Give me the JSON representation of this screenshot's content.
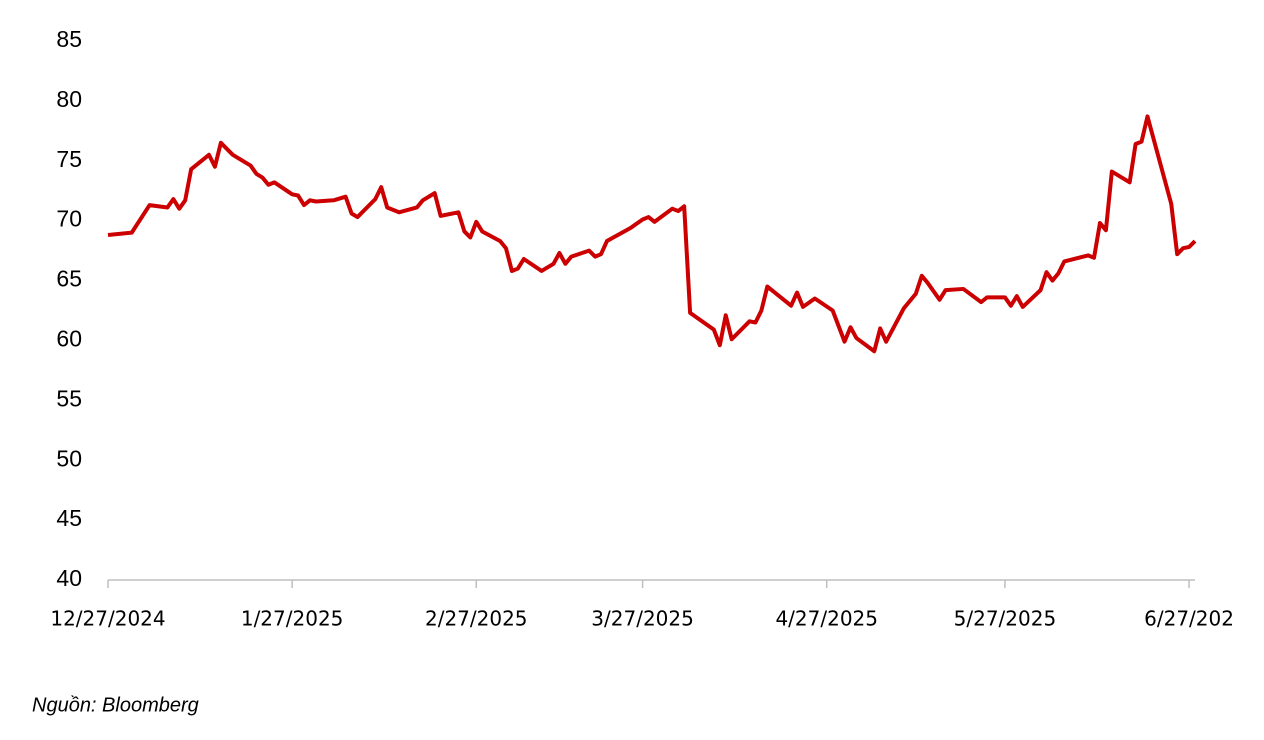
{
  "chart_data": {
    "type": "line",
    "color": "#cc0000",
    "x": [
      "2024-12-27",
      "2024-12-31",
      "2025-01-03",
      "2025-01-06",
      "2025-01-07",
      "2025-01-08",
      "2025-01-09",
      "2025-01-10",
      "2025-01-13",
      "2025-01-14",
      "2025-01-15",
      "2025-01-17",
      "2025-01-20",
      "2025-01-21",
      "2025-01-22",
      "2025-01-23",
      "2025-01-24",
      "2025-01-27",
      "2025-01-28",
      "2025-01-29",
      "2025-01-30",
      "2025-01-31",
      "2025-02-03",
      "2025-02-05",
      "2025-02-06",
      "2025-02-07",
      "2025-02-10",
      "2025-02-11",
      "2025-02-12",
      "2025-02-14",
      "2025-02-17",
      "2025-02-18",
      "2025-02-20",
      "2025-02-21",
      "2025-02-24",
      "2025-02-25",
      "2025-02-26",
      "2025-02-27",
      "2025-02-28",
      "2025-03-03",
      "2025-03-04",
      "2025-03-05",
      "2025-03-06",
      "2025-03-07",
      "2025-03-10",
      "2025-03-12",
      "2025-03-13",
      "2025-03-14",
      "2025-03-15",
      "2025-03-18",
      "2025-03-19",
      "2025-03-20",
      "2025-03-21",
      "2025-03-25",
      "2025-03-27",
      "2025-03-28",
      "2025-03-29",
      "2025-04-01",
      "2025-04-02",
      "2025-04-03",
      "2025-04-04",
      "2025-04-08",
      "2025-04-09",
      "2025-04-10",
      "2025-04-11",
      "2025-04-14",
      "2025-04-15",
      "2025-04-16",
      "2025-04-17",
      "2025-04-21",
      "2025-04-22",
      "2025-04-23",
      "2025-04-25",
      "2025-04-28",
      "2025-04-30",
      "2025-05-01",
      "2025-05-02",
      "2025-05-05",
      "2025-05-06",
      "2025-05-07",
      "2025-05-10",
      "2025-05-12",
      "2025-05-13",
      "2025-05-14",
      "2025-05-16",
      "2025-05-17",
      "2025-05-20",
      "2025-05-23",
      "2025-05-24",
      "2025-05-26",
      "2025-05-27",
      "2025-05-28",
      "2025-05-29",
      "2025-05-30",
      "2025-06-02",
      "2025-06-03",
      "2025-06-04",
      "2025-06-05",
      "2025-06-06",
      "2025-06-10",
      "2025-06-11",
      "2025-06-12",
      "2025-06-13",
      "2025-06-14",
      "2025-06-17",
      "2025-06-18",
      "2025-06-19",
      "2025-06-20",
      "2025-06-24",
      "2025-06-25",
      "2025-06-26",
      "2025-06-27",
      "2025-06-28"
    ],
    "values": [
      68.8,
      69.0,
      71.3,
      71.1,
      71.8,
      71.0,
      71.7,
      74.3,
      75.5,
      74.5,
      76.5,
      75.5,
      74.6,
      73.9,
      73.6,
      73.0,
      73.2,
      72.2,
      72.1,
      71.3,
      71.7,
      71.6,
      71.7,
      72.0,
      70.6,
      70.3,
      71.8,
      72.8,
      71.1,
      70.7,
      71.1,
      71.7,
      72.3,
      70.4,
      70.7,
      69.1,
      68.6,
      69.9,
      69.1,
      68.3,
      67.7,
      65.8,
      66.0,
      66.8,
      65.8,
      66.4,
      67.3,
      66.4,
      67.0,
      67.5,
      67.0,
      67.2,
      68.3,
      69.4,
      70.1,
      70.3,
      69.9,
      71.0,
      70.8,
      71.2,
      62.3,
      60.9,
      59.6,
      62.1,
      60.1,
      61.6,
      61.5,
      62.5,
      64.5,
      62.9,
      64.0,
      62.8,
      63.5,
      62.5,
      59.9,
      61.1,
      60.2,
      59.1,
      61.0,
      59.9,
      62.7,
      63.9,
      65.4,
      64.8,
      63.4,
      64.2,
      64.3,
      63.2,
      63.6,
      63.6,
      63.6,
      62.9,
      63.7,
      62.8,
      64.2,
      65.7,
      65.0,
      65.6,
      66.6,
      67.1,
      66.9,
      69.8,
      69.2,
      74.1,
      73.2,
      76.4,
      76.6,
      78.7,
      71.4,
      67.2,
      67.7,
      67.8,
      68.3
    ],
    "xlim": [
      "2024-12-27",
      "2025-06-28"
    ],
    "xticks": [
      {
        "value": "2024-12-27",
        "label": "12/27/2024"
      },
      {
        "value": "2025-01-27",
        "label": "1/27/2025"
      },
      {
        "value": "2025-02-27",
        "label": "2/27/2025"
      },
      {
        "value": "2025-03-27",
        "label": "3/27/2025"
      },
      {
        "value": "2025-04-27",
        "label": "4/27/2025"
      },
      {
        "value": "2025-05-27",
        "label": "5/27/2025"
      },
      {
        "value": "2025-06-27",
        "label": "6/27/202"
      }
    ],
    "ylim": [
      40,
      85
    ],
    "yticks": [
      40,
      45,
      50,
      55,
      60,
      65,
      70,
      75,
      80,
      85
    ],
    "grid": false,
    "source": "Nguồn: Bloomberg"
  }
}
